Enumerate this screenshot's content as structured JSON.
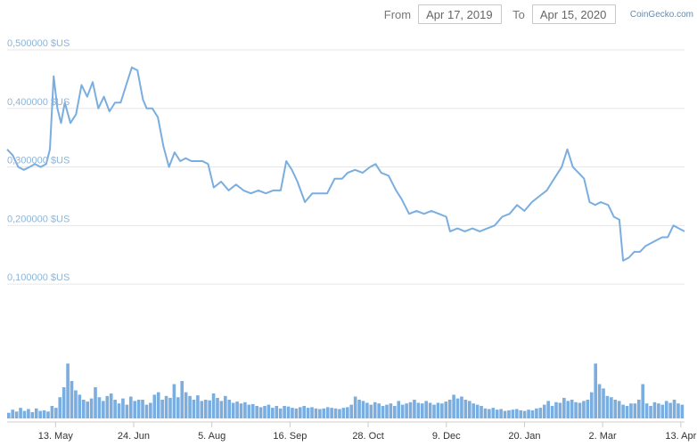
{
  "range": {
    "from_label": "From",
    "from_date": "Apr 17, 2019",
    "to_label": "To",
    "to_date": "Apr 15, 2020"
  },
  "brand": "CoinGecko.com",
  "chart_data": {
    "type": "line",
    "y_ticks": [
      {
        "value": 0.1,
        "label": "0,100000 $US"
      },
      {
        "value": 0.2,
        "label": "0,200000 $US"
      },
      {
        "value": 0.3,
        "label": "0,300000 $US"
      },
      {
        "value": 0.4,
        "label": "0,400000 $US"
      },
      {
        "value": 0.5,
        "label": "0,500000 $US"
      }
    ],
    "ylim": [
      0.05,
      0.5
    ],
    "x_ticks": [
      {
        "x": "2019-05-13",
        "label": "13. May"
      },
      {
        "x": "2019-06-24",
        "label": "24. Jun"
      },
      {
        "x": "2019-08-05",
        "label": "5. Aug"
      },
      {
        "x": "2019-09-16",
        "label": "16. Sep"
      },
      {
        "x": "2019-10-28",
        "label": "28. Oct"
      },
      {
        "x": "2019-12-09",
        "label": "9. Dec"
      },
      {
        "x": "2020-01-20",
        "label": "20. Jan"
      },
      {
        "x": "2020-03-02",
        "label": "2. Mar"
      },
      {
        "x": "2020-04-13",
        "label": "13. Apr"
      }
    ],
    "xlim": [
      "2019-04-17",
      "2020-04-15"
    ],
    "series": [
      {
        "color": "#7aaee0",
        "points": [
          [
            "2019-04-17",
            0.33
          ],
          [
            "2019-04-20",
            0.32
          ],
          [
            "2019-04-23",
            0.3
          ],
          [
            "2019-04-26",
            0.295
          ],
          [
            "2019-04-29",
            0.3
          ],
          [
            "2019-05-02",
            0.305
          ],
          [
            "2019-05-05",
            0.3
          ],
          [
            "2019-05-08",
            0.305
          ],
          [
            "2019-05-10",
            0.33
          ],
          [
            "2019-05-12",
            0.455
          ],
          [
            "2019-05-14",
            0.4
          ],
          [
            "2019-05-16",
            0.375
          ],
          [
            "2019-05-18",
            0.41
          ],
          [
            "2019-05-21",
            0.375
          ],
          [
            "2019-05-24",
            0.39
          ],
          [
            "2019-05-27",
            0.44
          ],
          [
            "2019-05-30",
            0.42
          ],
          [
            "2019-06-02",
            0.445
          ],
          [
            "2019-06-05",
            0.4
          ],
          [
            "2019-06-08",
            0.42
          ],
          [
            "2019-06-11",
            0.395
          ],
          [
            "2019-06-14",
            0.41
          ],
          [
            "2019-06-17",
            0.41
          ],
          [
            "2019-06-20",
            0.44
          ],
          [
            "2019-06-23",
            0.47
          ],
          [
            "2019-06-26",
            0.465
          ],
          [
            "2019-06-29",
            0.415
          ],
          [
            "2019-07-01",
            0.4
          ],
          [
            "2019-07-04",
            0.4
          ],
          [
            "2019-07-07",
            0.385
          ],
          [
            "2019-07-10",
            0.335
          ],
          [
            "2019-07-13",
            0.3
          ],
          [
            "2019-07-16",
            0.325
          ],
          [
            "2019-07-19",
            0.31
          ],
          [
            "2019-07-22",
            0.315
          ],
          [
            "2019-07-25",
            0.31
          ],
          [
            "2019-07-28",
            0.31
          ],
          [
            "2019-07-31",
            0.31
          ],
          [
            "2019-08-03",
            0.305
          ],
          [
            "2019-08-06",
            0.265
          ],
          [
            "2019-08-10",
            0.275
          ],
          [
            "2019-08-14",
            0.26
          ],
          [
            "2019-08-18",
            0.27
          ],
          [
            "2019-08-22",
            0.26
          ],
          [
            "2019-08-26",
            0.255
          ],
          [
            "2019-08-30",
            0.26
          ],
          [
            "2019-09-03",
            0.255
          ],
          [
            "2019-09-07",
            0.26
          ],
          [
            "2019-09-11",
            0.26
          ],
          [
            "2019-09-14",
            0.31
          ],
          [
            "2019-09-17",
            0.295
          ],
          [
            "2019-09-20",
            0.275
          ],
          [
            "2019-09-24",
            0.24
          ],
          [
            "2019-09-28",
            0.255
          ],
          [
            "2019-10-02",
            0.255
          ],
          [
            "2019-10-06",
            0.255
          ],
          [
            "2019-10-10",
            0.28
          ],
          [
            "2019-10-14",
            0.28
          ],
          [
            "2019-10-17",
            0.29
          ],
          [
            "2019-10-21",
            0.295
          ],
          [
            "2019-10-25",
            0.29
          ],
          [
            "2019-10-29",
            0.3
          ],
          [
            "2019-11-01",
            0.305
          ],
          [
            "2019-11-04",
            0.29
          ],
          [
            "2019-11-08",
            0.285
          ],
          [
            "2019-11-12",
            0.26
          ],
          [
            "2019-11-15",
            0.245
          ],
          [
            "2019-11-19",
            0.22
          ],
          [
            "2019-11-23",
            0.225
          ],
          [
            "2019-11-27",
            0.22
          ],
          [
            "2019-12-01",
            0.225
          ],
          [
            "2019-12-05",
            0.22
          ],
          [
            "2019-12-09",
            0.215
          ],
          [
            "2019-12-11",
            0.19
          ],
          [
            "2019-12-15",
            0.195
          ],
          [
            "2019-12-19",
            0.19
          ],
          [
            "2019-12-23",
            0.195
          ],
          [
            "2019-12-27",
            0.19
          ],
          [
            "2019-12-31",
            0.195
          ],
          [
            "2020-01-04",
            0.2
          ],
          [
            "2020-01-08",
            0.215
          ],
          [
            "2020-01-12",
            0.22
          ],
          [
            "2020-01-16",
            0.235
          ],
          [
            "2020-01-20",
            0.225
          ],
          [
            "2020-01-24",
            0.24
          ],
          [
            "2020-01-28",
            0.25
          ],
          [
            "2020-02-01",
            0.26
          ],
          [
            "2020-02-05",
            0.28
          ],
          [
            "2020-02-09",
            0.3
          ],
          [
            "2020-02-12",
            0.33
          ],
          [
            "2020-02-15",
            0.3
          ],
          [
            "2020-02-18",
            0.29
          ],
          [
            "2020-02-21",
            0.28
          ],
          [
            "2020-02-24",
            0.24
          ],
          [
            "2020-02-27",
            0.235
          ],
          [
            "2020-03-01",
            0.24
          ],
          [
            "2020-03-05",
            0.235
          ],
          [
            "2020-03-08",
            0.215
          ],
          [
            "2020-03-11",
            0.21
          ],
          [
            "2020-03-13",
            0.14
          ],
          [
            "2020-03-16",
            0.145
          ],
          [
            "2020-03-19",
            0.155
          ],
          [
            "2020-03-22",
            0.155
          ],
          [
            "2020-03-25",
            0.165
          ],
          [
            "2020-03-28",
            0.17
          ],
          [
            "2020-03-31",
            0.175
          ],
          [
            "2020-04-03",
            0.18
          ],
          [
            "2020-04-06",
            0.18
          ],
          [
            "2020-04-09",
            0.2
          ],
          [
            "2020-04-12",
            0.195
          ],
          [
            "2020-04-15",
            0.19
          ]
        ]
      }
    ],
    "volume": {
      "color": "#7aaee0",
      "values": [
        0.09,
        0.14,
        0.11,
        0.17,
        0.12,
        0.15,
        0.1,
        0.16,
        0.12,
        0.13,
        0.11,
        0.2,
        0.17,
        0.34,
        0.5,
        0.88,
        0.6,
        0.45,
        0.38,
        0.3,
        0.27,
        0.32,
        0.5,
        0.34,
        0.28,
        0.36,
        0.4,
        0.3,
        0.24,
        0.32,
        0.22,
        0.35,
        0.28,
        0.3,
        0.3,
        0.22,
        0.25,
        0.38,
        0.42,
        0.3,
        0.36,
        0.33,
        0.55,
        0.34,
        0.6,
        0.42,
        0.36,
        0.3,
        0.37,
        0.28,
        0.3,
        0.29,
        0.4,
        0.33,
        0.28,
        0.36,
        0.3,
        0.25,
        0.27,
        0.24,
        0.26,
        0.22,
        0.23,
        0.2,
        0.18,
        0.2,
        0.22,
        0.17,
        0.2,
        0.16,
        0.2,
        0.19,
        0.17,
        0.16,
        0.18,
        0.2,
        0.17,
        0.18,
        0.16,
        0.15,
        0.16,
        0.18,
        0.17,
        0.16,
        0.15,
        0.17,
        0.18,
        0.22,
        0.35,
        0.3,
        0.28,
        0.25,
        0.22,
        0.26,
        0.24,
        0.2,
        0.22,
        0.24,
        0.2,
        0.28,
        0.22,
        0.24,
        0.26,
        0.3,
        0.25,
        0.24,
        0.28,
        0.25,
        0.22,
        0.25,
        0.24,
        0.27,
        0.3,
        0.38,
        0.32,
        0.35,
        0.3,
        0.28,
        0.24,
        0.22,
        0.2,
        0.16,
        0.15,
        0.17,
        0.14,
        0.15,
        0.12,
        0.13,
        0.14,
        0.15,
        0.13,
        0.12,
        0.14,
        0.13,
        0.16,
        0.17,
        0.22,
        0.28,
        0.2,
        0.26,
        0.25,
        0.33,
        0.28,
        0.3,
        0.26,
        0.25,
        0.28,
        0.3,
        0.42,
        0.88,
        0.55,
        0.48,
        0.36,
        0.34,
        0.3,
        0.28,
        0.22,
        0.2,
        0.24,
        0.24,
        0.3,
        0.55,
        0.24,
        0.2,
        0.26,
        0.24,
        0.22,
        0.28,
        0.25,
        0.3,
        0.24,
        0.22
      ]
    }
  }
}
